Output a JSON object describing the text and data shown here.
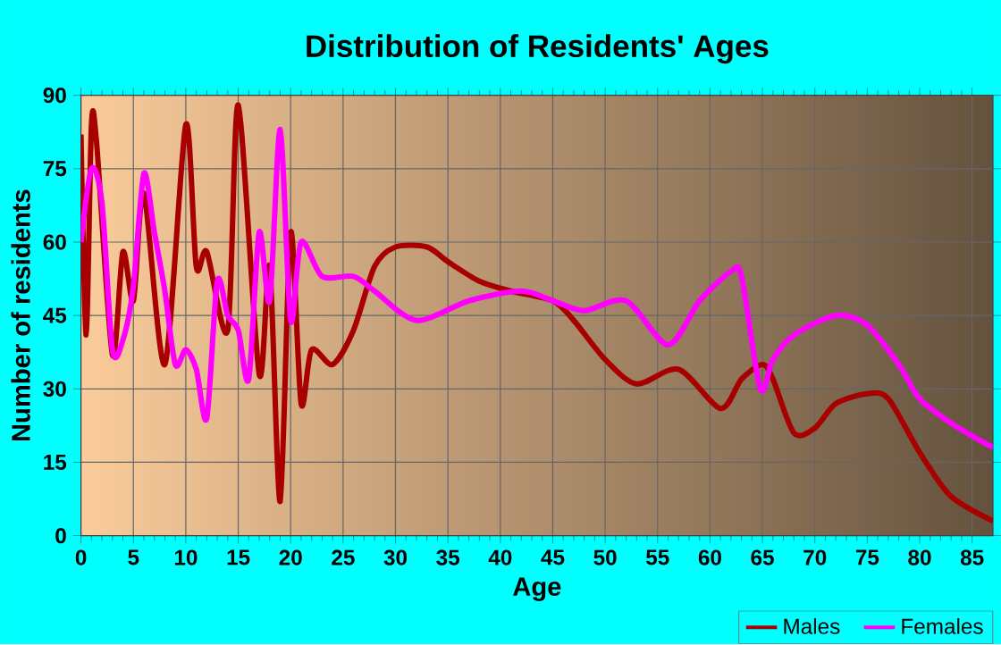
{
  "chart_data": {
    "type": "line",
    "title": "Distribution of Residents' Ages",
    "xlabel": "Age",
    "ylabel": "Number of residents",
    "xlim": [
      0,
      87
    ],
    "xticks": [
      0,
      5,
      10,
      15,
      20,
      25,
      30,
      35,
      40,
      45,
      50,
      55,
      60,
      65,
      70,
      75,
      80,
      85
    ],
    "ylim": [
      0,
      90
    ],
    "yticks": [
      0,
      15,
      30,
      45,
      60,
      75,
      90
    ],
    "grid": true,
    "legend": "bottom right",
    "marker": "none",
    "line_style": "solid",
    "series": [
      {
        "name": "Males",
        "color": "#a80000",
        "x": [
          0,
          0.5,
          1,
          1.5,
          3,
          4,
          5,
          6,
          8,
          10,
          11,
          12,
          14,
          15,
          17,
          18,
          19,
          20,
          21,
          22,
          24,
          26,
          28,
          30,
          33,
          35,
          38,
          41,
          45,
          47,
          50,
          53,
          57,
          61,
          63,
          65,
          66,
          68,
          70,
          72,
          75,
          77,
          80,
          83,
          87
        ],
        "values": [
          82,
          41,
          84,
          80,
          37,
          58,
          48,
          70,
          35,
          84,
          55,
          58,
          42,
          88,
          33,
          55,
          7,
          62,
          27,
          38,
          35,
          42,
          55,
          59,
          59,
          56,
          52,
          50,
          48,
          44,
          36,
          31,
          34,
          26,
          32,
          35,
          32,
          21,
          22,
          27,
          29,
          28,
          17,
          8,
          3
        ]
      },
      {
        "name": "Females",
        "color": "#ff00ff",
        "x": [
          0,
          1,
          2,
          3,
          4,
          5,
          6,
          7,
          8,
          9,
          10,
          11,
          12,
          13,
          14,
          15,
          16,
          17,
          18,
          19,
          20,
          21,
          23,
          26,
          28,
          32,
          37,
          42,
          45,
          48,
          52,
          56,
          59,
          62,
          63,
          64.8,
          66,
          68,
          72,
          75,
          78,
          80,
          83,
          87
        ],
        "values": [
          60,
          75,
          68,
          38,
          40,
          51,
          74,
          62,
          50,
          35,
          38,
          34,
          24,
          52,
          45,
          42,
          32,
          62,
          48,
          83,
          44,
          60,
          53,
          53,
          50,
          44,
          48,
          50,
          48,
          46,
          48,
          39,
          48,
          54,
          53,
          30,
          36,
          41,
          45,
          43,
          35,
          28,
          23,
          18
        ]
      }
    ]
  }
}
